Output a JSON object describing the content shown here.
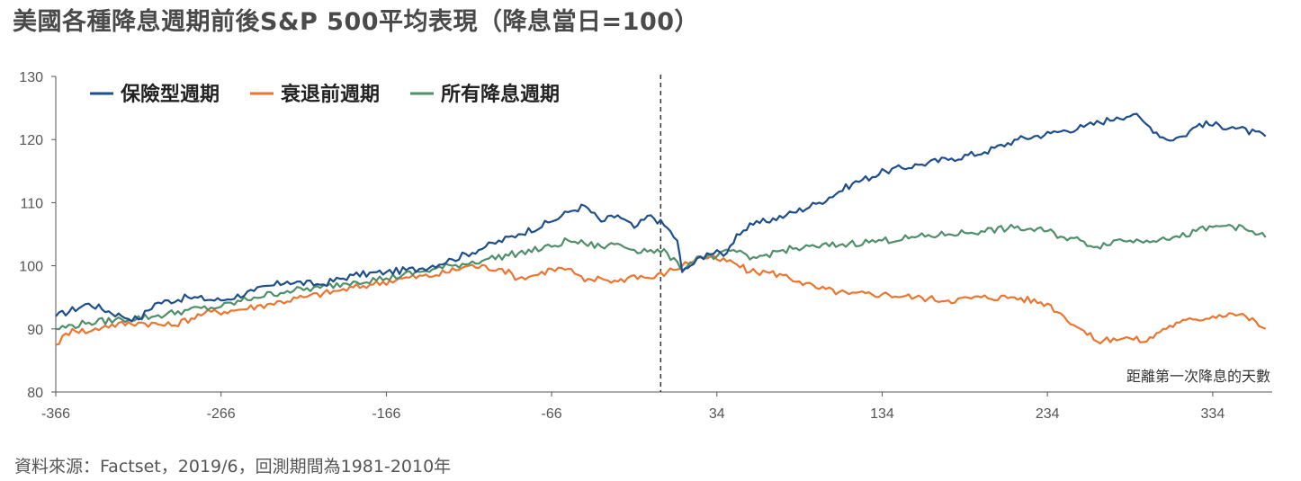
{
  "title": "美國各種降息週期前後S&P 500平均表現（降息當日=100）",
  "source": "資料來源：Factset，2019/6，回測期間為1981-2010年",
  "colors": {
    "insurance": "#1f4e8c",
    "recession": "#ec7530",
    "all": "#4f8f6b",
    "axis": "#555555",
    "divider": "#333333"
  },
  "chart_data": {
    "type": "line",
    "title": "",
    "xlabel": "距離第一次降息的天數",
    "ylabel": "",
    "xlim": [
      -366,
      370
    ],
    "ylim": [
      80,
      130
    ],
    "x_ticks": [
      -366,
      -266,
      -166,
      -66,
      34,
      134,
      234,
      334
    ],
    "y_ticks": [
      80,
      90,
      100,
      110,
      120,
      130
    ],
    "divider_x": 0,
    "legend_position": "top-left",
    "series": [
      {
        "name": "保險型週期",
        "color_key": "insurance",
        "points": [
          [
            -366,
            92
          ],
          [
            -346,
            94
          ],
          [
            -326,
            92
          ],
          [
            -316,
            91.5
          ],
          [
            -306,
            94
          ],
          [
            -286,
            95
          ],
          [
            -266,
            94.5
          ],
          [
            -246,
            96
          ],
          [
            -226,
            97.5
          ],
          [
            -206,
            97
          ],
          [
            -186,
            98.5
          ],
          [
            -166,
            99
          ],
          [
            -146,
            99.5
          ],
          [
            -126,
            101
          ],
          [
            -106,
            103
          ],
          [
            -86,
            105
          ],
          [
            -66,
            107
          ],
          [
            -56,
            108.5
          ],
          [
            -46,
            109.5
          ],
          [
            -36,
            107
          ],
          [
            -26,
            108
          ],
          [
            -16,
            106
          ],
          [
            -6,
            108
          ],
          [
            4,
            106
          ],
          [
            10,
            104
          ],
          [
            13,
            99
          ],
          [
            18,
            100
          ],
          [
            28,
            102
          ],
          [
            40,
            102
          ],
          [
            46,
            105
          ],
          [
            56,
            106.5
          ],
          [
            76,
            108
          ],
          [
            96,
            110
          ],
          [
            116,
            113
          ],
          [
            136,
            115
          ],
          [
            156,
            116
          ],
          [
            176,
            117
          ],
          [
            196,
            118
          ],
          [
            216,
            120
          ],
          [
            236,
            121
          ],
          [
            256,
            122
          ],
          [
            276,
            123.5
          ],
          [
            286,
            124
          ],
          [
            296,
            122
          ],
          [
            306,
            120
          ],
          [
            316,
            120.5
          ],
          [
            326,
            122.5
          ],
          [
            346,
            122
          ],
          [
            366,
            120.5
          ]
        ]
      },
      {
        "name": "衰退前週期",
        "color_key": "recession",
        "points": [
          [
            -366,
            87.5
          ],
          [
            -356,
            90
          ],
          [
            -346,
            89.5
          ],
          [
            -336,
            90.5
          ],
          [
            -316,
            91
          ],
          [
            -296,
            90.5
          ],
          [
            -276,
            92.5
          ],
          [
            -256,
            93
          ],
          [
            -236,
            94
          ],
          [
            -216,
            95
          ],
          [
            -196,
            96
          ],
          [
            -176,
            97
          ],
          [
            -156,
            98
          ],
          [
            -136,
            98.5
          ],
          [
            -116,
            100
          ],
          [
            -96,
            99.5
          ],
          [
            -86,
            98
          ],
          [
            -76,
            98.5
          ],
          [
            -66,
            99.5
          ],
          [
            -56,
            99.5
          ],
          [
            -46,
            97.5
          ],
          [
            -36,
            98
          ],
          [
            -26,
            97.5
          ],
          [
            -16,
            98.5
          ],
          [
            -6,
            98
          ],
          [
            4,
            99
          ],
          [
            13,
            100
          ],
          [
            24,
            101.5
          ],
          [
            34,
            101
          ],
          [
            44,
            100.5
          ],
          [
            54,
            99
          ],
          [
            64,
            99
          ],
          [
            74,
            98.5
          ],
          [
            84,
            97.5
          ],
          [
            94,
            96.5
          ],
          [
            114,
            95.5
          ],
          [
            134,
            95.5
          ],
          [
            154,
            95
          ],
          [
            174,
            94.5
          ],
          [
            194,
            95
          ],
          [
            214,
            95
          ],
          [
            234,
            94
          ],
          [
            244,
            92
          ],
          [
            254,
            90
          ],
          [
            264,
            88
          ],
          [
            274,
            88.5
          ],
          [
            284,
            88.5
          ],
          [
            294,
            88
          ],
          [
            304,
            90
          ],
          [
            314,
            91
          ],
          [
            324,
            91.5
          ],
          [
            334,
            92
          ],
          [
            344,
            92.5
          ],
          [
            354,
            92
          ],
          [
            366,
            90
          ]
        ]
      },
      {
        "name": "所有降息週期",
        "color_key": "all",
        "points": [
          [
            -366,
            90
          ],
          [
            -346,
            91
          ],
          [
            -326,
            91.5
          ],
          [
            -306,
            92
          ],
          [
            -286,
            93
          ],
          [
            -266,
            93.5
          ],
          [
            -246,
            95
          ],
          [
            -226,
            96
          ],
          [
            -206,
            96.5
          ],
          [
            -186,
            97.5
          ],
          [
            -166,
            98
          ],
          [
            -146,
            99
          ],
          [
            -126,
            100
          ],
          [
            -106,
            101
          ],
          [
            -86,
            102
          ],
          [
            -66,
            103
          ],
          [
            -56,
            104
          ],
          [
            -46,
            103.5
          ],
          [
            -36,
            103
          ],
          [
            -26,
            103.5
          ],
          [
            -16,
            102.5
          ],
          [
            -6,
            102.5
          ],
          [
            4,
            102
          ],
          [
            12,
            99.5
          ],
          [
            24,
            101.5
          ],
          [
            34,
            101.5
          ],
          [
            44,
            102.5
          ],
          [
            54,
            101
          ],
          [
            74,
            102.5
          ],
          [
            94,
            103
          ],
          [
            114,
            103.5
          ],
          [
            134,
            104
          ],
          [
            154,
            104.5
          ],
          [
            174,
            105
          ],
          [
            194,
            105.5
          ],
          [
            214,
            106
          ],
          [
            234,
            105.5
          ],
          [
            244,
            104.5
          ],
          [
            254,
            104
          ],
          [
            264,
            103
          ],
          [
            274,
            104
          ],
          [
            284,
            104
          ],
          [
            294,
            104
          ],
          [
            304,
            104.5
          ],
          [
            314,
            104.5
          ],
          [
            324,
            105.5
          ],
          [
            344,
            106.5
          ],
          [
            356,
            105.5
          ],
          [
            366,
            104.5
          ]
        ]
      }
    ]
  }
}
